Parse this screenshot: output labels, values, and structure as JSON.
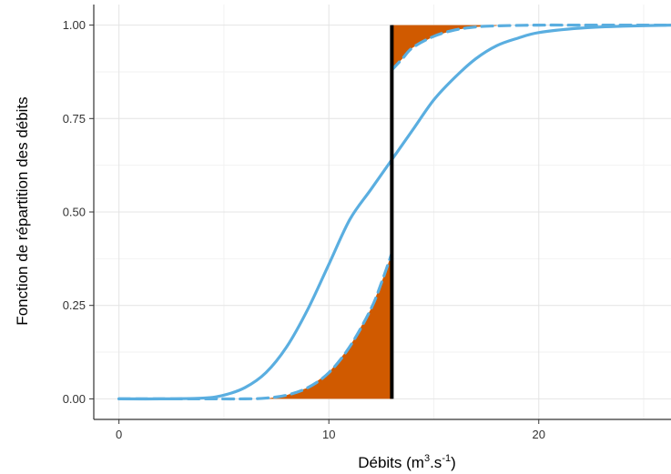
{
  "chart_data": {
    "type": "line",
    "title": "",
    "xlabel": {
      "main": "Débits (m",
      "sup1": "3",
      "mid": ".s",
      "sup2": "-1",
      "end": ")"
    },
    "ylabel": "Fonction de répartition des débits",
    "xlim": [
      -1.2,
      26.3
    ],
    "ylim": [
      -0.055,
      1.055
    ],
    "x_ticks": [
      0,
      10,
      20
    ],
    "x_tick_labels": [
      "0",
      "10",
      "20"
    ],
    "y_ticks": [
      0,
      0.25,
      0.5,
      0.75,
      1.0
    ],
    "y_tick_labels": [
      "0.00",
      "0.25",
      "0.50",
      "0.75",
      "1.00"
    ],
    "grid": true,
    "series": [
      {
        "line_style": "solid",
        "color": "#5aaee0",
        "x": [
          0,
          2,
          4,
          5,
          6,
          7,
          8,
          9,
          10,
          11,
          12,
          13,
          14,
          15,
          16,
          17,
          18,
          19,
          20,
          22,
          24,
          26.3
        ],
        "y": [
          0,
          0,
          0.002,
          0.01,
          0.03,
          0.07,
          0.14,
          0.24,
          0.36,
          0.48,
          0.56,
          0.64,
          0.72,
          0.8,
          0.86,
          0.91,
          0.945,
          0.965,
          0.98,
          0.992,
          0.997,
          1.0
        ]
      },
      {
        "line_style": "dashed",
        "color": "#5aaee0",
        "x": [
          0,
          4,
          6,
          7,
          8,
          9,
          10,
          11,
          12,
          12.5,
          13
        ],
        "y": [
          0,
          0,
          0,
          0.002,
          0.01,
          0.03,
          0.07,
          0.14,
          0.24,
          0.31,
          0.39
        ]
      },
      {
        "line_style": "dashed",
        "color": "#5aaee0",
        "x": [
          13,
          13.5,
          14,
          15,
          16,
          17,
          18,
          20,
          22,
          24,
          26.3
        ],
        "y": [
          0.88,
          0.91,
          0.94,
          0.97,
          0.987,
          0.995,
          0.998,
          1.0,
          1.0,
          1.0,
          1.0
        ]
      }
    ],
    "shaded_regions": [
      {
        "color": "#d05a00",
        "upper_x": [
          7.0,
          8,
          9,
          10,
          11,
          12,
          12.5,
          13
        ],
        "upper_y": [
          0,
          0.01,
          0.03,
          0.07,
          0.14,
          0.24,
          0.31,
          0.39
        ],
        "lower_y": 0
      },
      {
        "color": "#d05a00",
        "lower_x": [
          13,
          13.5,
          14,
          15,
          16,
          17,
          18
        ],
        "lower_y": [
          0.88,
          0.91,
          0.94,
          0.97,
          0.987,
          0.995,
          0.998
        ],
        "upper_y": 1.0
      }
    ],
    "vertical_lines": [
      {
        "x": 13,
        "y0": 0,
        "y1": 1.0,
        "color": "#000000"
      }
    ]
  }
}
